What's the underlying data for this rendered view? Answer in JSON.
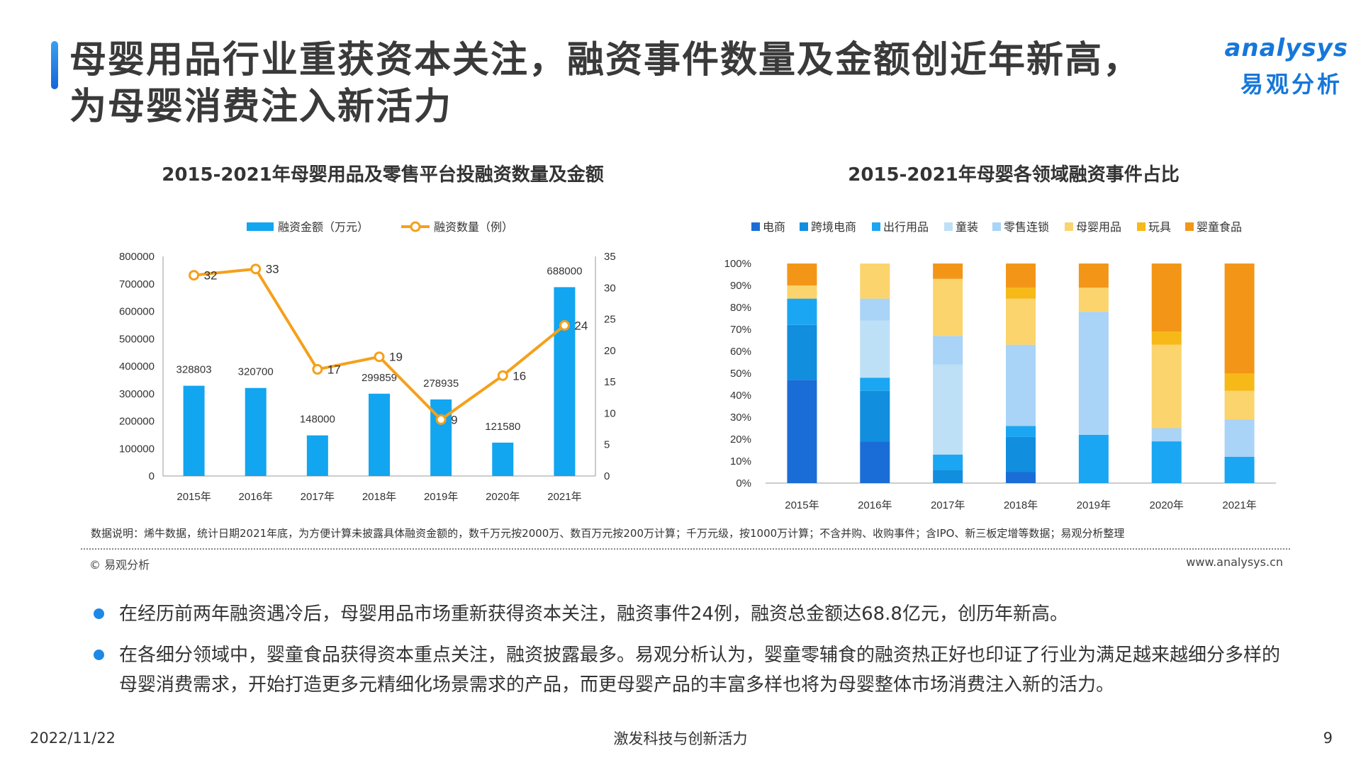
{
  "header": {
    "title": "母婴用品行业重获资本关注，融资事件数量及金额创近年新高，\n为母婴消费注入新活力",
    "logo_en": "analysys",
    "logo_cn": "易观分析"
  },
  "colors": {
    "bar_blue": "#12a5f0",
    "line_orange": "#f5a01b",
    "title_bar": "#1e7fe0"
  },
  "chart_data": [
    {
      "type": "bar",
      "title": "2015-2021年母婴用品及零售平台投融资数量及金额",
      "categories": [
        "2015年",
        "2016年",
        "2017年",
        "2018年",
        "2019年",
        "2020年",
        "2021年"
      ],
      "series": [
        {
          "name": "融资金额（万元）",
          "type": "bar",
          "axis": "left",
          "values": [
            328803,
            320700,
            148000,
            299859,
            278935,
            121580,
            688000
          ]
        },
        {
          "name": "融资数量（例）",
          "type": "line",
          "axis": "right",
          "values": [
            32,
            33,
            17,
            19,
            9,
            16,
            24
          ]
        }
      ],
      "y_left_ticks": [
        "0",
        "100000",
        "200000",
        "300000",
        "400000",
        "500000",
        "600000",
        "700000",
        "800000"
      ],
      "y_right_ticks": [
        "0",
        "5",
        "10",
        "15",
        "20",
        "25",
        "30",
        "35"
      ],
      "ylim_left": [
        0,
        800000
      ],
      "ylim_right": [
        0,
        35
      ],
      "legend_position": "top"
    },
    {
      "type": "bar",
      "stacked": true,
      "percent": true,
      "title": "2015-2021年母婴各领域融资事件占比",
      "categories": [
        "2015年",
        "2016年",
        "2017年",
        "2018年",
        "2019年",
        "2020年",
        "2021年"
      ],
      "y_ticks": [
        "0%",
        "10%",
        "20%",
        "30%",
        "40%",
        "50%",
        "60%",
        "70%",
        "80%",
        "90%",
        "100%"
      ],
      "ylim": [
        0,
        100
      ],
      "legend_position": "top",
      "series": [
        {
          "name": "电商",
          "color": "#1a6dd6",
          "values": [
            47,
            19,
            0,
            5,
            0,
            0,
            0
          ]
        },
        {
          "name": "跨境电商",
          "color": "#118ede",
          "values": [
            25,
            23,
            6,
            16,
            0,
            0,
            0
          ]
        },
        {
          "name": "出行用品",
          "color": "#1aa6f2",
          "values": [
            12,
            6,
            7,
            5,
            22,
            19,
            12
          ]
        },
        {
          "name": "童装",
          "color": "#bde0f6",
          "values": [
            0,
            26,
            41,
            0,
            0,
            0,
            0
          ]
        },
        {
          "name": "零售连锁",
          "color": "#a9d3f7",
          "values": [
            0,
            10,
            13,
            37,
            56,
            6,
            17
          ]
        },
        {
          "name": "母婴用品",
          "color": "#fbd46d",
          "values": [
            6,
            16,
            26,
            21,
            11,
            38,
            13
          ]
        },
        {
          "name": "玩具",
          "color": "#f7b918",
          "values": [
            0,
            0,
            0,
            5,
            0,
            6,
            8
          ]
        },
        {
          "name": "婴童食品",
          "color": "#f39617",
          "values": [
            10,
            0,
            7,
            11,
            11,
            31,
            50
          ]
        }
      ]
    }
  ],
  "note": "数据说明：烯牛数据，统计日期2021年底，为方便计算未披露具体融资金额的，数千万元按2000万、数百万元按200万计算；千万元级，按1000万计算；不含并购、收购事件；含IPO、新三板定增等数据；易观分析整理",
  "copyright": "© 易观分析",
  "website": "www.analysys.cn",
  "bullets": [
    "在经历前两年融资遇冷后，母婴用品市场重新获得资本关注，融资事件24例，融资总金额达68.8亿元，创历年新高。",
    "在各细分领域中，婴童食品获得资本重点关注，融资披露最多。易观分析认为，婴童零辅食的融资热正好也印证了行业为满足越来越细分多样的母婴消费需求，开始打造更多元精细化场景需求的产品，而更母婴产品的丰富多样也将为母婴整体市场消费注入新的活力。"
  ],
  "footer": {
    "date": "2022/11/22",
    "slogan": "激发科技与创新活力",
    "page": "9"
  }
}
